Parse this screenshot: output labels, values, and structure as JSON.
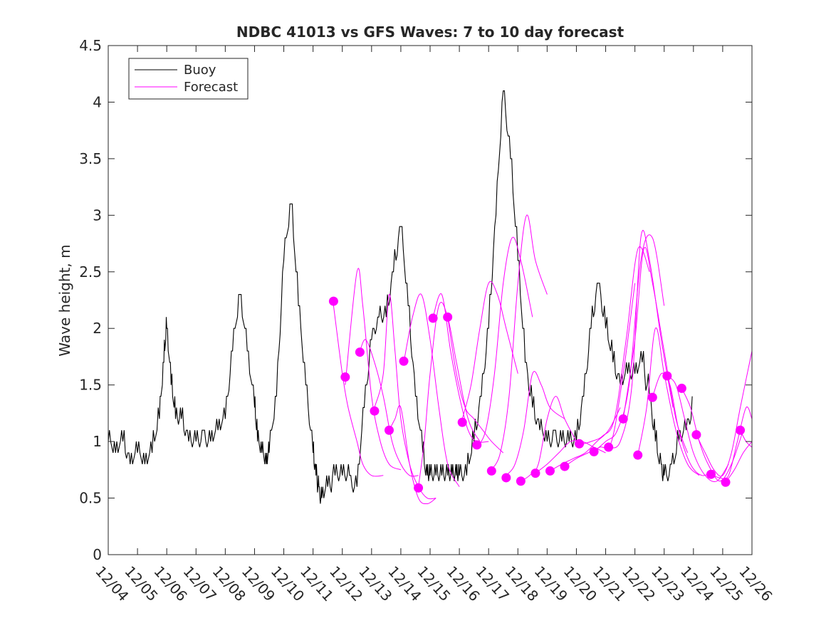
{
  "chart_data": {
    "type": "line",
    "title": "NDBC 41013 vs GFS Waves: 7 to 10 day forecast",
    "xlabel": "",
    "ylabel": "Wave height, m",
    "xlim": [
      0,
      22
    ],
    "ylim": [
      0,
      4.5
    ],
    "ytick_values": [
      0,
      0.5,
      1,
      1.5,
      2,
      2.5,
      3,
      3.5,
      4,
      4.5
    ],
    "ytick_labels": [
      "0",
      "0.5",
      "1",
      "1.5",
      "2",
      "2.5",
      "3",
      "3.5",
      "4",
      "4.5"
    ],
    "xtick_values": [
      0,
      1,
      2,
      3,
      4,
      5,
      6,
      7,
      8,
      9,
      10,
      11,
      12,
      13,
      14,
      15,
      16,
      17,
      18,
      19,
      20,
      21,
      22
    ],
    "xtick_labels": [
      "12/04",
      "12/05",
      "12/06",
      "12/07",
      "12/08",
      "12/09",
      "12/10",
      "12/11",
      "12/12",
      "12/13",
      "12/14",
      "12/15",
      "12/16",
      "12/17",
      "12/18",
      "12/19",
      "12/20",
      "12/21",
      "12/22",
      "12/23",
      "12/24",
      "12/25",
      "12/26"
    ],
    "grid": false,
    "legend_position": "top-left",
    "colors": {
      "buoy": "#000000",
      "forecast": "#ff00ff",
      "axes": "#262626"
    },
    "legend": [
      {
        "label": "Buoy",
        "color": "#000000"
      },
      {
        "label": "Forecast",
        "color": "#ff00ff"
      }
    ],
    "buoy": {
      "name": "Buoy",
      "x": [
        0,
        0.25,
        0.5,
        0.75,
        1,
        1.25,
        1.5,
        1.75,
        1.9,
        2,
        2.15,
        2.3,
        2.5,
        2.75,
        3,
        3.25,
        3.5,
        3.75,
        4,
        4.25,
        4.5,
        4.75,
        5,
        5.1,
        5.25,
        5.4,
        5.5,
        5.75,
        6,
        6.25,
        6.5,
        6.75,
        7,
        7.1,
        7.2,
        7.3,
        7.5,
        7.75,
        8,
        8.25,
        8.5,
        8.75,
        9,
        9.25,
        9.5,
        9.75,
        10,
        10.25,
        10.5,
        10.75,
        10.9,
        11,
        11.2,
        11.4,
        11.6,
        11.75,
        11.9,
        12,
        12.25,
        12.5,
        12.75,
        13,
        13.25,
        13.5,
        13.75,
        14,
        14.25,
        14.5,
        14.75,
        15,
        15.25,
        15.5,
        15.75,
        16,
        16.25,
        16.5,
        16.75,
        17,
        17.25,
        17.5,
        17.75,
        18,
        18.25,
        18.5,
        18.7,
        18.9,
        19,
        19.25,
        19.5,
        19.75,
        20,
        20.25,
        20.5,
        20.75,
        21,
        21.2,
        21.4,
        21.6,
        21.8
      ],
      "y": [
        1.0,
        0.9,
        1.0,
        0.8,
        0.9,
        0.8,
        0.9,
        1.2,
        1.7,
        2.0,
        1.5,
        1.2,
        1.2,
        1.0,
        1.0,
        1.05,
        1.0,
        1.1,
        1.2,
        1.8,
        2.3,
        1.8,
        1.3,
        1.0,
        0.9,
        0.8,
        0.9,
        1.4,
        2.6,
        3.1,
        2.2,
        1.5,
        0.9,
        0.7,
        0.55,
        0.5,
        0.6,
        0.7,
        0.65,
        0.65,
        0.6,
        1.3,
        1.9,
        2.05,
        2.1,
        2.5,
        2.9,
        2.2,
        1.4,
        0.9,
        0.65,
        0.7,
        0.65,
        0.65,
        0.65,
        0.7,
        0.65,
        0.7,
        0.7,
        1.0,
        1.4,
        2.0,
        3.0,
        4.1,
        3.5,
        2.6,
        1.7,
        1.3,
        1.1,
        1.0,
        1.05,
        0.95,
        1.0,
        1.0,
        1.4,
        2.0,
        2.4,
        2.0,
        1.7,
        1.5,
        1.6,
        1.6,
        1.7,
        1.4,
        1.0,
        0.75,
        0.65,
        0.75,
        1.0,
        1.1,
        1.3,
        null,
        null,
        null,
        null,
        null,
        null,
        null,
        null
      ],
      "note": "buoy series sampled at quarter-day resolution; values read approximately from chart"
    },
    "forecast_runs": [
      {
        "x": [
          7.7,
          8.0,
          8.2,
          8.5,
          8.7,
          9.0,
          9.4
        ],
        "y": [
          2.2,
          1.6,
          1.3,
          1.0,
          0.8,
          0.7,
          0.7
        ]
      },
      {
        "x": [
          8.1,
          8.5,
          8.7,
          9.0,
          9.3,
          9.6,
          10.0
        ],
        "y": [
          1.5,
          2.5,
          2.2,
          1.4,
          1.0,
          0.8,
          0.75
        ]
      },
      {
        "x": [
          8.6,
          8.8,
          9.1,
          9.4,
          9.7,
          10.0,
          10.3,
          10.6
        ],
        "y": [
          1.8,
          1.9,
          1.7,
          1.4,
          1.0,
          0.8,
          0.7,
          0.7
        ]
      },
      {
        "x": [
          9.1,
          9.4,
          9.6,
          9.8,
          10.0,
          10.3,
          10.6,
          10.9,
          11.2
        ],
        "y": [
          1.3,
          1.6,
          2.3,
          1.8,
          1.2,
          0.8,
          0.6,
          0.5,
          0.5
        ]
      },
      {
        "x": [
          9.6,
          9.8,
          10.0,
          10.3,
          10.6,
          10.9,
          11.2
        ],
        "y": [
          1.1,
          1.2,
          1.3,
          0.8,
          0.5,
          0.45,
          0.5
        ]
      },
      {
        "x": [
          10.1,
          10.4,
          10.7,
          11.0,
          11.3,
          11.6,
          12.0
        ],
        "y": [
          1.7,
          2.1,
          2.3,
          1.9,
          1.3,
          0.8,
          0.6
        ]
      },
      {
        "x": [
          10.6,
          10.8,
          11.0,
          11.3,
          11.6,
          11.9,
          12.3,
          12.7
        ],
        "y": [
          0.6,
          1.0,
          1.6,
          2.2,
          2.1,
          1.7,
          1.2,
          1.0
        ]
      },
      {
        "x": [
          11.1,
          11.4,
          11.7,
          12.0,
          12.3,
          12.6,
          13.0
        ],
        "y": [
          2.1,
          2.3,
          1.8,
          1.4,
          1.1,
          1.0,
          1.0
        ]
      },
      {
        "x": [
          11.6,
          11.9,
          12.2,
          12.5,
          12.8,
          13.1,
          13.5
        ],
        "y": [
          2.1,
          1.6,
          1.3,
          1.2,
          1.1,
          1.0,
          0.9
        ]
      },
      {
        "x": [
          12.1,
          12.4,
          12.7,
          13.0,
          13.3,
          13.6,
          14.0
        ],
        "y": [
          1.2,
          1.5,
          2.0,
          2.4,
          2.3,
          2.0,
          1.6
        ]
      },
      {
        "x": [
          12.6,
          12.9,
          13.2,
          13.5,
          13.8,
          14.1,
          14.5
        ],
        "y": [
          0.95,
          1.1,
          1.6,
          2.4,
          2.8,
          2.6,
          2.1
        ]
      },
      {
        "x": [
          13.1,
          13.4,
          13.7,
          14.0,
          14.3,
          14.6,
          15.0
        ],
        "y": [
          0.75,
          0.9,
          1.4,
          2.4,
          3.0,
          2.6,
          2.3
        ]
      },
      {
        "x": [
          13.6,
          13.9,
          14.2,
          14.5,
          14.8,
          15.1,
          15.6
        ],
        "y": [
          0.7,
          0.8,
          1.1,
          1.6,
          1.5,
          1.3,
          1.2
        ]
      },
      {
        "x": [
          14.1,
          14.4,
          14.7,
          15.0,
          15.3,
          15.6,
          16.0
        ],
        "y": [
          0.65,
          0.7,
          0.8,
          1.2,
          1.4,
          1.2,
          1.0
        ]
      },
      {
        "x": [
          14.6,
          15.0,
          15.4,
          15.8,
          16.2,
          16.6,
          17.0
        ],
        "y": [
          0.72,
          0.8,
          0.9,
          1.0,
          1.0,
          0.95,
          0.9
        ]
      },
      {
        "x": [
          15.1,
          15.5,
          15.9,
          16.3,
          16.7,
          17.1,
          17.5
        ],
        "y": [
          0.74,
          0.8,
          0.85,
          0.9,
          1.0,
          1.1,
          1.3
        ]
      },
      {
        "x": [
          15.6,
          16.0,
          16.4,
          16.8,
          17.2,
          17.6,
          18.0
        ],
        "y": [
          0.78,
          0.85,
          0.9,
          0.95,
          1.0,
          1.6,
          2.4
        ]
      },
      {
        "x": [
          16.1,
          16.5,
          16.9,
          17.3,
          17.7,
          18.1,
          18.5
        ],
        "y": [
          0.97,
          1.0,
          1.05,
          1.2,
          1.9,
          2.7,
          2.5
        ]
      },
      {
        "x": [
          16.6,
          17.0,
          17.4,
          17.8,
          18.2,
          18.6,
          19.0
        ],
        "y": [
          0.91,
          1.0,
          1.1,
          1.5,
          2.6,
          2.8,
          2.2
        ]
      },
      {
        "x": [
          17.1,
          17.5,
          17.9,
          18.2,
          18.5,
          18.9,
          19.3
        ],
        "y": [
          0.95,
          1.0,
          1.5,
          2.8,
          2.6,
          1.9,
          1.3
        ]
      },
      {
        "x": [
          17.6,
          18.0,
          18.3,
          18.6,
          19.0,
          19.4,
          19.8
        ],
        "y": [
          1.2,
          1.9,
          2.7,
          2.4,
          1.8,
          1.2,
          0.9
        ]
      },
      {
        "x": [
          18.1,
          18.4,
          18.7,
          19.0,
          19.4,
          19.8,
          20.2
        ],
        "y": [
          0.88,
          1.3,
          2.0,
          1.6,
          1.1,
          0.8,
          0.7
        ]
      },
      {
        "x": [
          18.6,
          18.9,
          19.2,
          19.5,
          19.9,
          20.3,
          20.7
        ],
        "y": [
          1.39,
          1.6,
          1.5,
          1.1,
          0.8,
          0.7,
          0.75
        ]
      },
      {
        "x": [
          19.1,
          19.4,
          19.7,
          20.0,
          20.4,
          20.8,
          21.2
        ],
        "y": [
          1.58,
          1.5,
          1.2,
          0.9,
          0.7,
          0.65,
          0.8
        ]
      },
      {
        "x": [
          19.6,
          19.9,
          20.2,
          20.5,
          20.9,
          21.3,
          21.7
        ],
        "y": [
          1.47,
          1.3,
          1.0,
          0.8,
          0.65,
          0.8,
          1.1
        ]
      },
      {
        "x": [
          20.1,
          20.4,
          20.7,
          21.0,
          21.3,
          21.6,
          22.0
        ],
        "y": [
          1.06,
          0.9,
          0.75,
          0.7,
          0.9,
          1.3,
          1.8
        ]
      },
      {
        "x": [
          20.6,
          20.9,
          21.2,
          21.5,
          21.8,
          22.0
        ],
        "y": [
          0.71,
          0.68,
          0.7,
          1.0,
          1.3,
          1.2
        ]
      },
      {
        "x": [
          21.1,
          21.4,
          21.7,
          22.0
        ],
        "y": [
          0.64,
          0.75,
          0.9,
          1.0
        ]
      },
      {
        "x": [
          21.6,
          21.8,
          22.0
        ],
        "y": [
          1.1,
          1.0,
          0.95
        ]
      }
    ],
    "forecast_markers": {
      "x": [
        7.7,
        8.1,
        8.6,
        9.1,
        9.6,
        10.1,
        10.6,
        11.1,
        11.6,
        12.1,
        12.6,
        13.1,
        13.6,
        14.1,
        14.6,
        15.1,
        15.6,
        16.1,
        16.6,
        17.1,
        17.6,
        18.1,
        18.6,
        19.1,
        19.6,
        20.1,
        20.6,
        21.1,
        21.6
      ],
      "y": [
        2.24,
        1.57,
        1.79,
        1.27,
        1.1,
        1.71,
        0.59,
        2.09,
        2.1,
        1.17,
        0.97,
        0.74,
        0.68,
        0.65,
        0.72,
        0.74,
        0.78,
        0.98,
        0.91,
        0.95,
        1.2,
        0.88,
        1.39,
        1.58,
        1.47,
        1.06,
        0.71,
        0.64,
        1.1
      ]
    }
  }
}
